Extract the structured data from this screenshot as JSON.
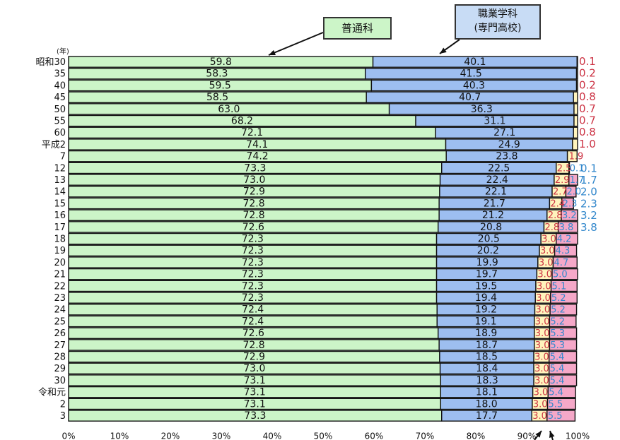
{
  "chart_data": {
    "type": "bar",
    "orientation": "horizontal",
    "stacked": true,
    "year_unit_label": "(年)",
    "categories": [
      "昭和30",
      "35",
      "40",
      "45",
      "50",
      "55",
      "60",
      "平成2",
      "7",
      "12",
      "13",
      "14",
      "15",
      "16",
      "17",
      "18",
      "19",
      "20",
      "21",
      "22",
      "23",
      "24",
      "25",
      "26",
      "27",
      "28",
      "29",
      "30",
      "令和元",
      "2",
      "3"
    ],
    "series": [
      {
        "name": "普通科",
        "color": "#ccf5c8",
        "label_color": "#111111",
        "values": [
          59.8,
          58.3,
          59.5,
          58.5,
          63.0,
          68.2,
          72.1,
          74.1,
          74.2,
          73.3,
          73.0,
          72.9,
          72.8,
          72.8,
          72.6,
          72.3,
          72.3,
          72.3,
          72.3,
          72.3,
          72.3,
          72.4,
          72.4,
          72.6,
          72.8,
          72.9,
          73.0,
          73.1,
          73.1,
          73.1,
          73.3
        ]
      },
      {
        "name": "職業学科（専門高校）",
        "color": "#9dbef0",
        "label_color": "#111111",
        "values": [
          40.1,
          41.5,
          40.3,
          40.7,
          36.3,
          31.1,
          27.1,
          24.9,
          23.8,
          22.5,
          22.4,
          22.1,
          21.7,
          21.2,
          20.8,
          20.5,
          20.2,
          19.9,
          19.7,
          19.5,
          19.4,
          19.2,
          19.1,
          18.9,
          18.7,
          18.5,
          18.4,
          18.3,
          18.1,
          18.0,
          17.7
        ]
      },
      {
        "name": "",
        "color": "#fff4bd",
        "label_color": "#cc3344",
        "values": [
          0.1,
          0.2,
          0.2,
          0.8,
          0.7,
          0.7,
          0.8,
          1.0,
          1.9,
          2.5,
          2.9,
          2.7,
          2.4,
          2.8,
          2.8,
          3.0,
          3.0,
          3.0,
          3.0,
          3.0,
          3.0,
          3.0,
          3.0,
          3.0,
          3.0,
          3.0,
          3.0,
          3.0,
          3.0,
          3.0,
          3.0
        ]
      },
      {
        "name": "",
        "color": "#f5a8c8",
        "label_color": "#3388cc",
        "values": [
          0,
          0,
          0,
          0,
          0,
          0,
          0,
          0,
          0,
          0.1,
          1.7,
          2.0,
          2.3,
          3.2,
          3.8,
          4.2,
          4.3,
          4.7,
          5.0,
          5.1,
          5.2,
          5.2,
          5.2,
          5.3,
          5.3,
          5.4,
          5.4,
          5.4,
          5.4,
          5.5,
          5.5
        ]
      }
    ],
    "x_ticks": [
      "0%",
      "10%",
      "20%",
      "30%",
      "40%",
      "50%",
      "60%",
      "70%",
      "80%",
      "90%",
      "100%"
    ],
    "xlim": [
      0,
      100
    ],
    "right_labels_red": [
      "0.1",
      "0.2",
      "0.2",
      "0.8",
      "0.7",
      "0.7",
      "0.8",
      "1.0"
    ],
    "right_labels_blue": [
      "0.1",
      "1.7",
      "2.0",
      "2.3",
      "3.2",
      "3.8"
    ],
    "inline_labels": [
      "59.8",
      "58.3",
      "59.5",
      "58.5",
      "63.0",
      "68.2",
      "72.1",
      "74.1",
      "74.2",
      "73.3",
      "73.0",
      "72.9",
      "72.8",
      "72.8",
      "72.6",
      "72.3",
      "72.3",
      "72.3",
      "72.3",
      "72.3",
      "72.3",
      "72.4",
      "72.4",
      "72.6",
      "72.8",
      "72.9",
      "73.0",
      "73.1",
      "73.1",
      "73.1",
      "73.3"
    ],
    "grid": false
  },
  "callouts": {
    "general": "普通科",
    "vocational_line1": "職業学科",
    "vocational_line2": "(専門高校)"
  }
}
